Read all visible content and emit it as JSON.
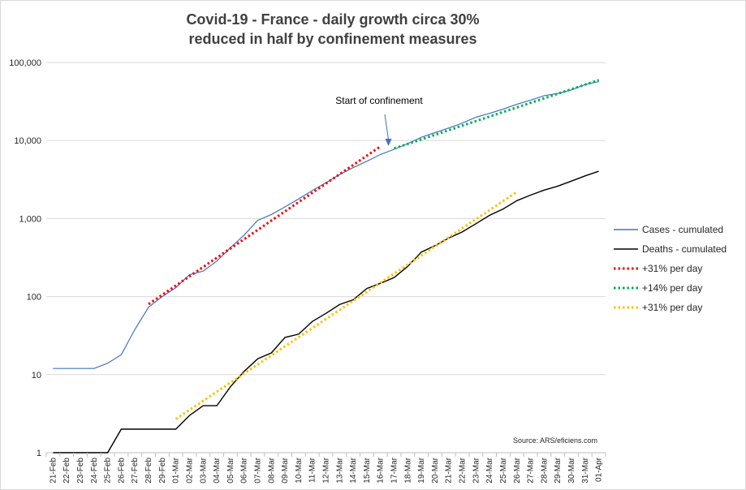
{
  "chart_data": {
    "type": "line",
    "title": "Covid-19 - France - daily growth circa 30%",
    "subtitle": "reduced in half by confinement measures",
    "yscale": "log",
    "ylim": [
      1,
      100000
    ],
    "y_ticks": [
      1,
      10,
      100,
      1000,
      10000,
      100000
    ],
    "y_tick_labels": [
      "1",
      "10",
      "100",
      "1,000",
      "10,000",
      "100,000"
    ],
    "grid": "horizontal",
    "legend_position": "right",
    "categories": [
      "21-Feb",
      "22-Feb",
      "23-Feb",
      "24-Feb",
      "25-Feb",
      "26-Feb",
      "27-Feb",
      "28-Feb",
      "29-Feb",
      "01-Mar",
      "02-Mar",
      "03-Mar",
      "04-Mar",
      "05-Mar",
      "06-Mar",
      "07-Mar",
      "08-Mar",
      "09-Mar",
      "10-Mar",
      "11-Mar",
      "12-Mar",
      "13-Mar",
      "14-Mar",
      "15-Mar",
      "16-Mar",
      "17-Mar",
      "18-Mar",
      "19-Mar",
      "20-Mar",
      "21-Mar",
      "22-Mar",
      "23-Mar",
      "24-Mar",
      "25-Mar",
      "26-Mar",
      "27-Mar",
      "28-Mar",
      "29-Mar",
      "30-Mar",
      "31-Mar",
      "01-Apr"
    ],
    "series": [
      {
        "name": "Cases - cumulated",
        "style": "solid",
        "color": "#4472c4",
        "x": [
          "21-Feb",
          "22-Feb",
          "23-Feb",
          "24-Feb",
          "25-Feb",
          "26-Feb",
          "27-Feb",
          "28-Feb",
          "29-Feb",
          "01-Mar",
          "02-Mar",
          "03-Mar",
          "04-Mar",
          "05-Mar",
          "06-Mar",
          "07-Mar",
          "08-Mar",
          "09-Mar",
          "10-Mar",
          "11-Mar",
          "12-Mar",
          "13-Mar",
          "14-Mar",
          "15-Mar",
          "16-Mar",
          "17-Mar",
          "18-Mar",
          "19-Mar",
          "20-Mar",
          "21-Mar",
          "22-Mar",
          "23-Mar",
          "24-Mar",
          "25-Mar",
          "26-Mar",
          "27-Mar",
          "28-Mar",
          "29-Mar",
          "30-Mar",
          "31-Mar",
          "01-Apr"
        ],
        "values": [
          12,
          12,
          12,
          12,
          14,
          18,
          38,
          73,
          100,
          130,
          191,
          212,
          285,
          423,
          613,
          949,
          1126,
          1412,
          1784,
          2281,
          2876,
          3661,
          4499,
          5423,
          6633,
          7730,
          9134,
          10995,
          12612,
          14459,
          16689,
          19856,
          22304,
          25233,
          29155,
          32964,
          37575,
          40174,
          44550,
          52128,
          56989
        ]
      },
      {
        "name": "Deaths - cumulated",
        "style": "solid",
        "color": "#000000",
        "x": [
          "21-Feb",
          "22-Feb",
          "23-Feb",
          "24-Feb",
          "25-Feb",
          "26-Feb",
          "27-Feb",
          "28-Feb",
          "29-Feb",
          "01-Mar",
          "02-Mar",
          "03-Mar",
          "04-Mar",
          "05-Mar",
          "06-Mar",
          "07-Mar",
          "08-Mar",
          "09-Mar",
          "10-Mar",
          "11-Mar",
          "12-Mar",
          "13-Mar",
          "14-Mar",
          "15-Mar",
          "16-Mar",
          "17-Mar",
          "18-Mar",
          "19-Mar",
          "20-Mar",
          "21-Mar",
          "22-Mar",
          "23-Mar",
          "24-Mar",
          "25-Mar",
          "26-Mar",
          "27-Mar",
          "28-Mar",
          "29-Mar",
          "30-Mar",
          "31-Mar",
          "01-Apr"
        ],
        "values": [
          1,
          1,
          1,
          1,
          1,
          2,
          2,
          2,
          2,
          2,
          3,
          4,
          4,
          7,
          11,
          16,
          19,
          30,
          33,
          48,
          61,
          79,
          91,
          127,
          148,
          175,
          244,
          372,
          450,
          562,
          674,
          860,
          1100,
          1331,
          1696,
          1995,
          2314,
          2606,
          3024,
          3523,
          4032
        ]
      },
      {
        "name": "+31% per day",
        "style": "dotted",
        "color": "#ff0000",
        "x": [
          "28-Feb",
          "16-Mar"
        ],
        "values": [
          80,
          8400
        ]
      },
      {
        "name": "+14% per day",
        "style": "dotted",
        "color": "#00b050",
        "x": [
          "17-Mar",
          "01-Apr"
        ],
        "values": [
          7900,
          59500
        ]
      },
      {
        "name": "+31% per day",
        "style": "dotted",
        "color": "#ffc000",
        "x": [
          "01-Mar",
          "26-Mar"
        ],
        "values": [
          2.7,
          2200
        ]
      }
    ],
    "annotations": [
      {
        "text": "Start of confinement",
        "arrow_to": "17-Mar"
      },
      {
        "text": "Source: ARS/eficiens.com"
      }
    ]
  }
}
